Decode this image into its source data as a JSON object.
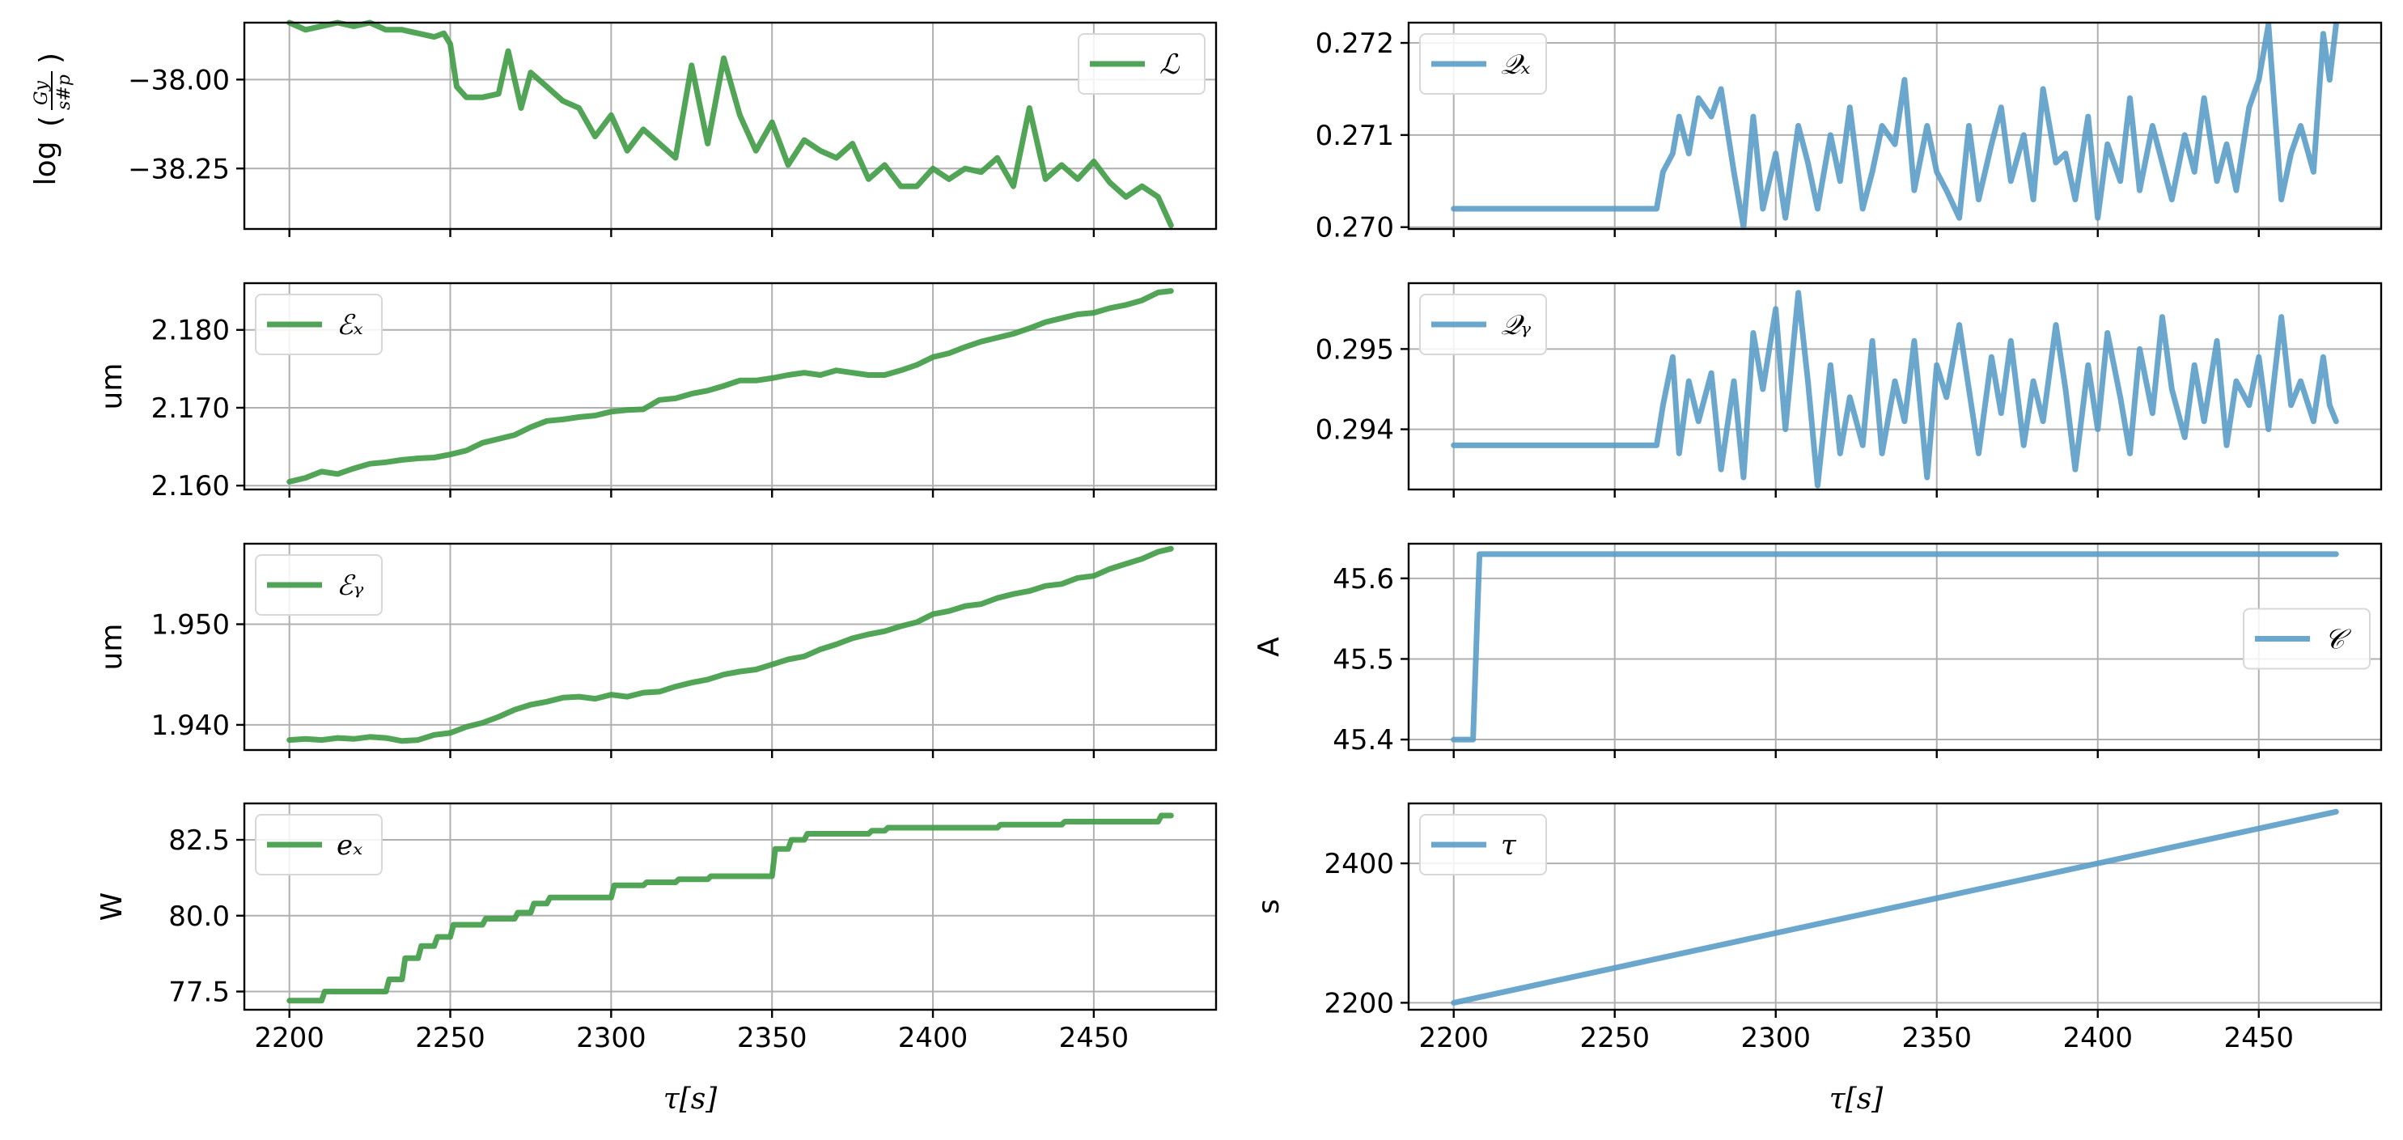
{
  "colors": {
    "green": "#3f9b45",
    "blue": "#5b9dc8",
    "grid": "#b0b0b0"
  },
  "chart_data": [
    {
      "id": "lum",
      "type": "line",
      "color": "green",
      "ylabel": "log(Gy/s#p)",
      "ylim": [
        -38.42,
        -37.84
      ],
      "yticks": [
        {
          "v": -38.25,
          "label": "−38.25"
        },
        {
          "v": -38.0,
          "label": "−38.00"
        }
      ],
      "legend": {
        "label": "ℒ",
        "position": "upper right"
      },
      "series": [
        {
          "name": "ℒ",
          "x": [
            2200,
            2205,
            2210,
            2215,
            2220,
            2225,
            2230,
            2235,
            2240,
            2245,
            2248,
            2250,
            2252,
            2255,
            2260,
            2265,
            2268,
            2272,
            2275,
            2280,
            2285,
            2290,
            2295,
            2300,
            2305,
            2310,
            2315,
            2320,
            2325,
            2330,
            2335,
            2340,
            2345,
            2350,
            2355,
            2360,
            2365,
            2370,
            2375,
            2380,
            2385,
            2390,
            2395,
            2400,
            2405,
            2410,
            2415,
            2420,
            2425,
            2430,
            2435,
            2440,
            2445,
            2450,
            2455,
            2460,
            2465,
            2470,
            2474
          ],
          "y": [
            -37.84,
            -37.86,
            -37.85,
            -37.84,
            -37.85,
            -37.84,
            -37.86,
            -37.86,
            -37.87,
            -37.88,
            -37.87,
            -37.9,
            -38.02,
            -38.05,
            -38.05,
            -38.04,
            -37.92,
            -38.08,
            -37.98,
            -38.02,
            -38.06,
            -38.08,
            -38.16,
            -38.1,
            -38.2,
            -38.14,
            -38.18,
            -38.22,
            -37.96,
            -38.18,
            -37.94,
            -38.1,
            -38.2,
            -38.12,
            -38.24,
            -38.17,
            -38.2,
            -38.22,
            -38.18,
            -38.28,
            -38.24,
            -38.3,
            -38.3,
            -38.25,
            -38.28,
            -38.25,
            -38.26,
            -38.22,
            -38.3,
            -38.08,
            -38.28,
            -38.24,
            -38.28,
            -38.23,
            -38.29,
            -38.33,
            -38.3,
            -38.33,
            -38.41
          ]
        }
      ]
    },
    {
      "id": "qx",
      "type": "line",
      "color": "blue",
      "ylabel": "",
      "ylim": [
        2699.8,
        2722.2
      ],
      "yscale": 0.0001,
      "yticks": [
        {
          "v": 2700,
          "label": "0.270"
        },
        {
          "v": 2710,
          "label": "0.271"
        },
        {
          "v": 2720,
          "label": "0.272"
        }
      ],
      "legend": {
        "label": "𝒬ₓ",
        "position": "upper left"
      },
      "series": [
        {
          "name": "Qx",
          "x": [
            2200,
            2262,
            2263,
            2265,
            2268,
            2270,
            2273,
            2276,
            2280,
            2283,
            2287,
            2290,
            2293,
            2296,
            2300,
            2303,
            2307,
            2310,
            2313,
            2317,
            2320,
            2323,
            2327,
            2330,
            2333,
            2337,
            2340,
            2343,
            2347,
            2350,
            2353,
            2357,
            2360,
            2363,
            2367,
            2370,
            2373,
            2377,
            2380,
            2383,
            2387,
            2390,
            2393,
            2397,
            2400,
            2403,
            2407,
            2410,
            2413,
            2417,
            2420,
            2423,
            2427,
            2430,
            2433,
            2437,
            2440,
            2443,
            2447,
            2450,
            2453,
            2457,
            2460,
            2463,
            2467,
            2470,
            2472,
            2474
          ],
          "y": [
            2702,
            2702,
            2702,
            2706,
            2708,
            2712,
            2708,
            2714,
            2712,
            2715,
            2706,
            2700,
            2712,
            2702,
            2708,
            2701,
            2711,
            2707,
            2702,
            2710,
            2705,
            2713,
            2702,
            2706,
            2711,
            2709,
            2716,
            2704,
            2711,
            2706,
            2704,
            2701,
            2711,
            2703,
            2709,
            2713,
            2705,
            2710,
            2703,
            2715,
            2707,
            2708,
            2703,
            2712,
            2701,
            2709,
            2705,
            2714,
            2704,
            2711,
            2707,
            2703,
            2710,
            2706,
            2714,
            2705,
            2709,
            2704,
            2713,
            2716,
            2722,
            2703,
            2708,
            2711,
            2706,
            2721,
            2716,
            2722
          ]
        }
      ]
    },
    {
      "id": "ex",
      "type": "line",
      "color": "green",
      "ylabel": "um",
      "ylim": [
        2.1595,
        2.186
      ],
      "yticks": [
        {
          "v": 2.16,
          "label": "2.160"
        },
        {
          "v": 2.17,
          "label": "2.170"
        },
        {
          "v": 2.18,
          "label": "2.180"
        }
      ],
      "legend": {
        "label": "ℰₓ",
        "position": "upper left"
      },
      "series": [
        {
          "name": "Ex",
          "x": [
            2200,
            2205,
            2210,
            2215,
            2220,
            2225,
            2230,
            2235,
            2240,
            2245,
            2250,
            2255,
            2260,
            2265,
            2270,
            2275,
            2280,
            2285,
            2290,
            2295,
            2300,
            2305,
            2310,
            2315,
            2320,
            2325,
            2330,
            2335,
            2340,
            2345,
            2350,
            2355,
            2360,
            2365,
            2370,
            2375,
            2380,
            2385,
            2390,
            2395,
            2400,
            2405,
            2410,
            2415,
            2420,
            2425,
            2430,
            2435,
            2440,
            2445,
            2450,
            2455,
            2460,
            2465,
            2470,
            2474
          ],
          "y": [
            2.1605,
            2.161,
            2.1618,
            2.1615,
            2.1622,
            2.1628,
            2.163,
            2.1633,
            2.1635,
            2.1636,
            2.164,
            2.1645,
            2.1655,
            2.166,
            2.1665,
            2.1675,
            2.1683,
            2.1685,
            2.1688,
            2.169,
            2.1695,
            2.1697,
            2.1698,
            2.171,
            2.1712,
            2.1718,
            2.1722,
            2.1728,
            2.1735,
            2.1735,
            2.1738,
            2.1742,
            2.1745,
            2.1742,
            2.1748,
            2.1745,
            2.1742,
            2.1742,
            2.1748,
            2.1755,
            2.1765,
            2.177,
            2.1778,
            2.1785,
            2.179,
            2.1795,
            2.1802,
            2.181,
            2.1815,
            2.182,
            2.1822,
            2.1828,
            2.1832,
            2.1838,
            2.1848,
            2.185
          ]
        }
      ]
    },
    {
      "id": "qy",
      "type": "line",
      "color": "blue",
      "ylabel": "",
      "ylim": [
        2.9325,
        2.9582
      ],
      "yscale": 0.1,
      "yticks": [
        {
          "v": 2.94,
          "label": "0.294"
        },
        {
          "v": 2.95,
          "label": "0.295"
        }
      ],
      "legend": {
        "label": "𝒬ᵧ",
        "position": "upper left"
      },
      "series": [
        {
          "name": "Qy",
          "x": [
            2200,
            2262,
            2263,
            2265,
            2268,
            2270,
            2273,
            2276,
            2280,
            2283,
            2287,
            2290,
            2293,
            2296,
            2300,
            2303,
            2307,
            2310,
            2313,
            2317,
            2320,
            2323,
            2327,
            2330,
            2333,
            2337,
            2340,
            2343,
            2347,
            2350,
            2353,
            2357,
            2360,
            2363,
            2367,
            2370,
            2373,
            2377,
            2380,
            2383,
            2387,
            2390,
            2393,
            2397,
            2400,
            2403,
            2407,
            2410,
            2413,
            2417,
            2420,
            2423,
            2427,
            2430,
            2433,
            2437,
            2440,
            2443,
            2447,
            2450,
            2453,
            2457,
            2460,
            2463,
            2467,
            2470,
            2472,
            2474
          ],
          "y": [
            2.938,
            2.938,
            2.938,
            2.943,
            2.949,
            2.937,
            2.946,
            2.941,
            2.947,
            2.935,
            2.946,
            2.934,
            2.952,
            2.945,
            2.955,
            2.94,
            2.957,
            2.946,
            2.933,
            2.948,
            2.937,
            2.944,
            2.938,
            2.951,
            2.937,
            2.946,
            2.941,
            2.951,
            2.934,
            2.948,
            2.944,
            2.953,
            2.945,
            2.937,
            2.949,
            2.942,
            2.951,
            2.938,
            2.946,
            2.941,
            2.953,
            2.945,
            2.935,
            2.948,
            2.94,
            2.952,
            2.944,
            2.937,
            2.95,
            2.942,
            2.954,
            2.945,
            2.939,
            2.948,
            2.941,
            2.951,
            2.938,
            2.946,
            2.943,
            2.949,
            2.94,
            2.954,
            2.943,
            2.946,
            2.941,
            2.949,
            2.943,
            2.941
          ]
        }
      ]
    },
    {
      "id": "ey",
      "type": "line",
      "color": "green",
      "ylabel": "um",
      "ylim": [
        1.9375,
        1.958
      ],
      "yticks": [
        {
          "v": 1.94,
          "label": "1.940"
        },
        {
          "v": 1.95,
          "label": "1.950"
        }
      ],
      "legend": {
        "label": "ℰᵧ",
        "position": "upper left"
      },
      "series": [
        {
          "name": "Ey",
          "x": [
            2200,
            2205,
            2210,
            2215,
            2220,
            2225,
            2230,
            2235,
            2240,
            2245,
            2250,
            2255,
            2260,
            2265,
            2270,
            2275,
            2280,
            2285,
            2290,
            2295,
            2300,
            2305,
            2310,
            2315,
            2320,
            2325,
            2330,
            2335,
            2340,
            2345,
            2350,
            2355,
            2360,
            2365,
            2370,
            2375,
            2380,
            2385,
            2390,
            2395,
            2400,
            2405,
            2410,
            2415,
            2420,
            2425,
            2430,
            2435,
            2440,
            2445,
            2450,
            2455,
            2460,
            2465,
            2470,
            2474
          ],
          "y": [
            1.9385,
            1.9386,
            1.9385,
            1.9387,
            1.9386,
            1.9388,
            1.9387,
            1.9384,
            1.9385,
            1.939,
            1.9392,
            1.9398,
            1.9402,
            1.9408,
            1.9415,
            1.942,
            1.9423,
            1.9427,
            1.9428,
            1.9426,
            1.943,
            1.9428,
            1.9432,
            1.9433,
            1.9438,
            1.9442,
            1.9445,
            1.945,
            1.9453,
            1.9455,
            1.946,
            1.9465,
            1.9468,
            1.9475,
            1.948,
            1.9486,
            1.949,
            1.9493,
            1.9498,
            1.9502,
            1.951,
            1.9513,
            1.9518,
            1.952,
            1.9526,
            1.953,
            1.9533,
            1.9538,
            1.954,
            1.9546,
            1.9548,
            1.9555,
            1.956,
            1.9565,
            1.9572,
            1.9575
          ]
        }
      ]
    },
    {
      "id": "cur",
      "type": "line",
      "color": "blue",
      "ylabel": "A",
      "ylim": [
        45.387,
        45.643
      ],
      "yticks": [
        {
          "v": 45.4,
          "label": "45.4"
        },
        {
          "v": 45.5,
          "label": "45.5"
        },
        {
          "v": 45.6,
          "label": "45.6"
        }
      ],
      "legend": {
        "label": "𝒞",
        "position": "center right"
      },
      "series": [
        {
          "name": "C",
          "x": [
            2200,
            2206,
            2208,
            2474
          ],
          "y": [
            45.4,
            45.4,
            45.63,
            45.63
          ]
        }
      ]
    },
    {
      "id": "ec",
      "type": "line",
      "color": "green",
      "ylabel": "W",
      "ylim": [
        76.9,
        83.7
      ],
      "yticks": [
        {
          "v": 77.5,
          "label": "77.5"
        },
        {
          "v": 80.0,
          "label": "80.0"
        },
        {
          "v": 82.5,
          "label": "82.5"
        }
      ],
      "legend": {
        "label": "eₓ",
        "position": "upper left"
      },
      "series": [
        {
          "name": "ec",
          "x": [
            2200,
            2210,
            2211,
            2230,
            2231,
            2235,
            2236,
            2240,
            2241,
            2245,
            2246,
            2250,
            2251,
            2260,
            2261,
            2270,
            2271,
            2275,
            2276,
            2280,
            2281,
            2300,
            2301,
            2310,
            2311,
            2320,
            2321,
            2330,
            2331,
            2350,
            2351,
            2355,
            2356,
            2360,
            2361,
            2380,
            2381,
            2385,
            2386,
            2420,
            2421,
            2440,
            2441,
            2470,
            2471,
            2474
          ],
          "y": [
            77.2,
            77.2,
            77.5,
            77.5,
            77.9,
            77.9,
            78.6,
            78.6,
            79.0,
            79.0,
            79.3,
            79.3,
            79.7,
            79.7,
            79.9,
            79.9,
            80.1,
            80.1,
            80.4,
            80.4,
            80.6,
            80.6,
            81.0,
            81.0,
            81.1,
            81.1,
            81.2,
            81.2,
            81.3,
            81.3,
            82.2,
            82.2,
            82.5,
            82.5,
            82.7,
            82.7,
            82.8,
            82.8,
            82.9,
            82.9,
            83.0,
            83.0,
            83.1,
            83.1,
            83.3,
            83.3
          ]
        }
      ]
    },
    {
      "id": "tau",
      "type": "line",
      "color": "blue",
      "ylabel": "s",
      "ylim": [
        2190,
        2486
      ],
      "yticks": [
        {
          "v": 2200,
          "label": "2200"
        },
        {
          "v": 2400,
          "label": "2400"
        }
      ],
      "legend": {
        "label": "τ",
        "position": "upper left"
      },
      "series": [
        {
          "name": "τ",
          "x": [
            2200,
            2474
          ],
          "y": [
            2200,
            2474
          ]
        }
      ]
    }
  ],
  "xaxis": {
    "xlim": [
      2186,
      2488
    ],
    "ticks": [
      {
        "v": 2200,
        "label": "2200"
      },
      {
        "v": 2250,
        "label": "2250"
      },
      {
        "v": 2300,
        "label": "2300"
      },
      {
        "v": 2350,
        "label": "2350"
      },
      {
        "v": 2400,
        "label": "2400"
      },
      {
        "v": 2450,
        "label": "2450"
      }
    ],
    "label": "τ[s]"
  }
}
